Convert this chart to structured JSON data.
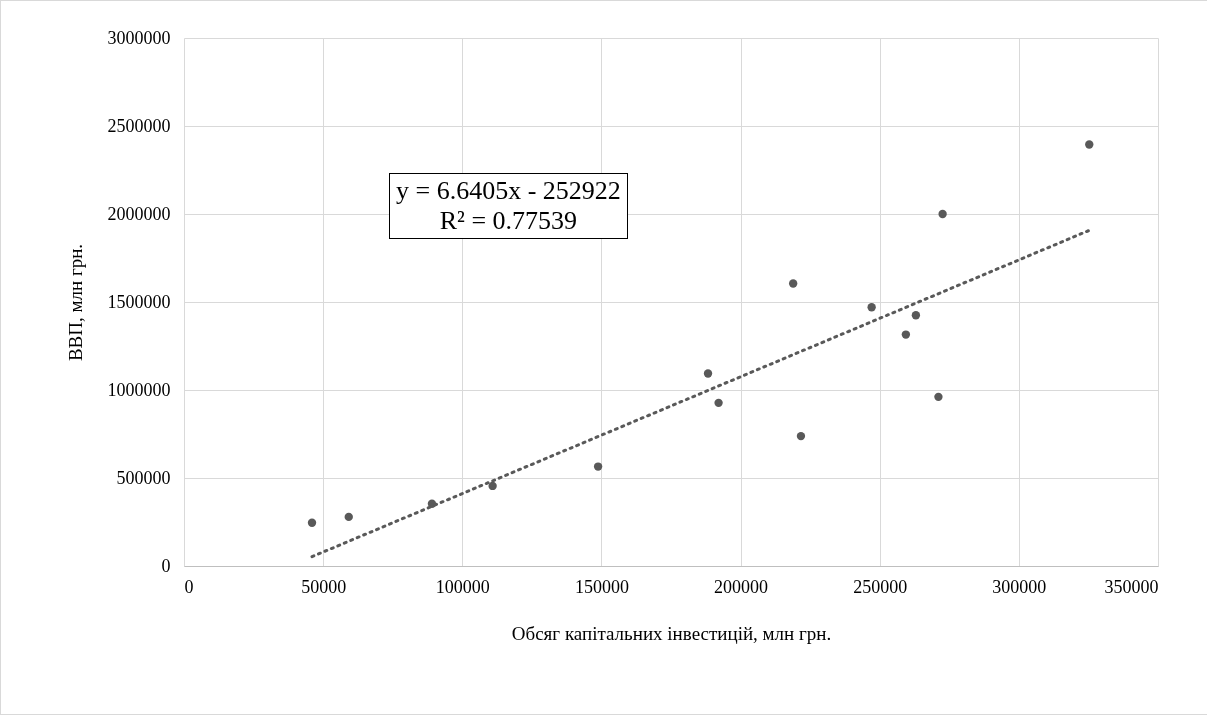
{
  "chart_data": {
    "type": "scatter",
    "xlabel": "Обсяг капітальних  інвестицій, млн грн.",
    "ylabel": "ВВП, млн грн.",
    "xlim": [
      0,
      350000
    ],
    "xticks": [
      0,
      50000,
      100000,
      150000,
      200000,
      250000,
      300000,
      350000
    ],
    "ylim": [
      0,
      3000000
    ],
    "yticks": [
      0,
      500000,
      1000000,
      1500000,
      2000000,
      2500000,
      3000000
    ],
    "grid": true,
    "marker": "circle",
    "annotations": [
      "y = 6.6405x - 252922",
      "R² = 0.77539"
    ],
    "series": [
      {
        "color": "#595959",
        "x": [
          46000,
          59200,
          89100,
          110900,
          148800,
          188300,
          192100,
          218900,
          221700,
          247100,
          259400,
          263000,
          271100,
          272600,
          325300
        ],
        "values": [
          246000,
          279000,
          354000,
          455000,
          565000,
          1094000,
          927000,
          1605000,
          738000,
          1470000,
          1315000,
          1425000,
          961000,
          2000000,
          2395000
        ]
      },
      {
        "type": "line",
        "color": "#595959",
        "line_style": "dotted",
        "marker": "none",
        "x": [
          46000,
          325300
        ],
        "values": [
          53000,
          1907000
        ]
      }
    ]
  }
}
